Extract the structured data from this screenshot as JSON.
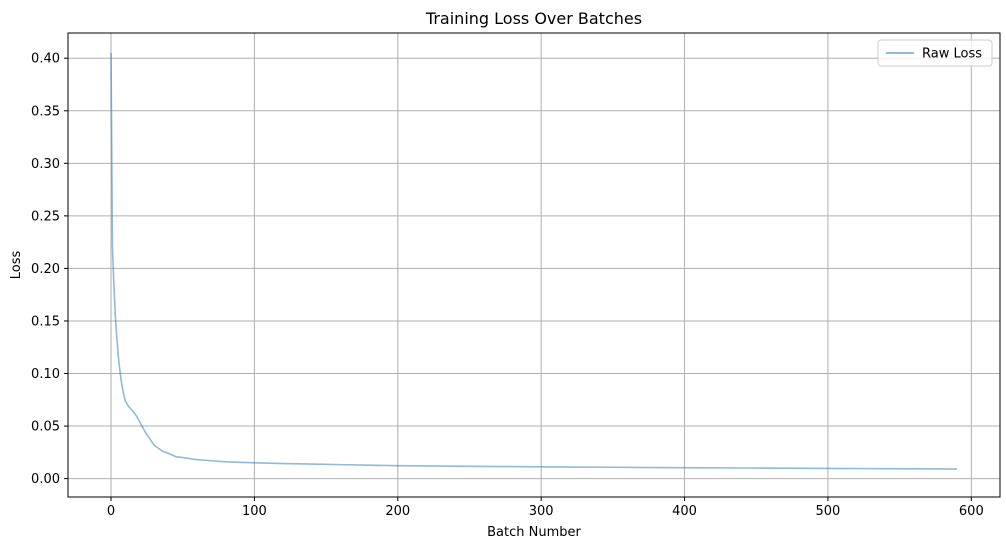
{
  "chart_data": {
    "type": "line",
    "title": "Training Loss Over Batches",
    "xlabel": "Batch Number",
    "ylabel": "Loss",
    "xlim": [
      -30,
      620
    ],
    "ylim": [
      -0.0175,
      0.424
    ],
    "xticks": [
      0,
      100,
      200,
      300,
      400,
      500,
      600
    ],
    "yticks": [
      0.0,
      0.05,
      0.1,
      0.15,
      0.2,
      0.25,
      0.3,
      0.35,
      0.4
    ],
    "ytick_labels": [
      "0.00",
      "0.05",
      "0.10",
      "0.15",
      "0.20",
      "0.25",
      "0.30",
      "0.35",
      "0.40"
    ],
    "grid": true,
    "legend_position": "top-right",
    "series": [
      {
        "name": "Raw Loss",
        "color": "#1f77b4",
        "opacity": 0.5,
        "x": [
          0,
          1,
          2,
          3,
          4,
          5,
          6,
          7,
          8,
          9,
          10,
          12,
          14,
          16,
          18,
          20,
          22,
          24,
          26,
          28,
          30,
          33,
          36,
          40,
          45,
          50,
          55,
          60,
          70,
          80,
          90,
          100,
          120,
          140,
          160,
          180,
          200,
          230,
          260,
          290,
          320,
          350,
          380,
          410,
          440,
          470,
          500,
          530,
          560,
          590
        ],
        "y": [
          0.405,
          0.22,
          0.185,
          0.155,
          0.135,
          0.118,
          0.105,
          0.094,
          0.086,
          0.079,
          0.074,
          0.069,
          0.066,
          0.063,
          0.059,
          0.054,
          0.049,
          0.044,
          0.04,
          0.036,
          0.032,
          0.029,
          0.026,
          0.024,
          0.021,
          0.02,
          0.019,
          0.018,
          0.017,
          0.016,
          0.0155,
          0.015,
          0.0143,
          0.0138,
          0.0133,
          0.0128,
          0.0123,
          0.0119,
          0.0116,
          0.0113,
          0.011,
          0.0108,
          0.0105,
          0.0103,
          0.0101,
          0.0099,
          0.0097,
          0.0095,
          0.0093,
          0.0091
        ]
      }
    ]
  }
}
